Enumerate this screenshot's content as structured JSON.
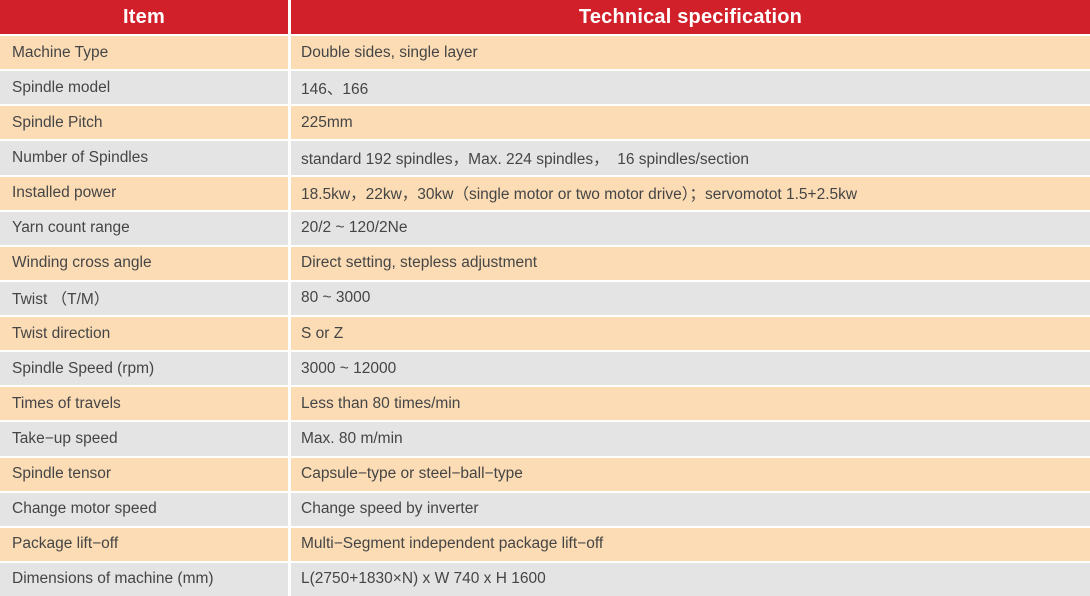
{
  "table": {
    "headers": {
      "item": "Item",
      "spec": "Technical specification"
    },
    "rows": [
      {
        "item": "Machine Type",
        "spec": "Double sides, single layer"
      },
      {
        "item": "Spindle model",
        "spec": "146、166"
      },
      {
        "item": "Spindle Pitch",
        "spec": "225mm"
      },
      {
        "item": "Number of Spindles",
        "spec": "standard 192 spindles，Max. 224 spindles，  16 spindles/section"
      },
      {
        "item": "Installed power",
        "spec": "18.5kw，22kw，30kw（single motor or two motor drive）；servomotot 1.5+2.5kw"
      },
      {
        "item": "Yarn count range",
        "spec": "20/2 ~ 120/2Ne"
      },
      {
        "item": "Winding cross angle",
        "spec": "Direct setting, stepless adjustment"
      },
      {
        "item": "Twist （T/M）",
        "spec": "80 ~ 3000"
      },
      {
        "item": "Twist direction",
        "spec": "S or Z"
      },
      {
        "item": "Spindle Speed (rpm)",
        "spec": "3000 ~ 12000"
      },
      {
        "item": "Times of travels",
        "spec": "Less than 80 times/min"
      },
      {
        "item": "Take−up speed",
        "spec": "Max. 80 m/min"
      },
      {
        "item": "Spindle tensor",
        "spec": "Capsule−type or steel−ball−type"
      },
      {
        "item": "Change motor speed",
        "spec": "Change speed by inverter"
      },
      {
        "item": "Package lift−off",
        "spec": "Multi−Segment independent package lift−off"
      },
      {
        "item": "Dimensions of machine (mm)",
        "spec": "L(2750+1830×N) x W 740 x H 1600"
      }
    ],
    "colors": {
      "header_bg": "#d2202a",
      "header_text": "#ffffff",
      "row_odd_bg": "#fbdcb5",
      "row_even_bg": "#e4e4e4",
      "body_text": "#454545",
      "divider": "#ffffff"
    }
  }
}
